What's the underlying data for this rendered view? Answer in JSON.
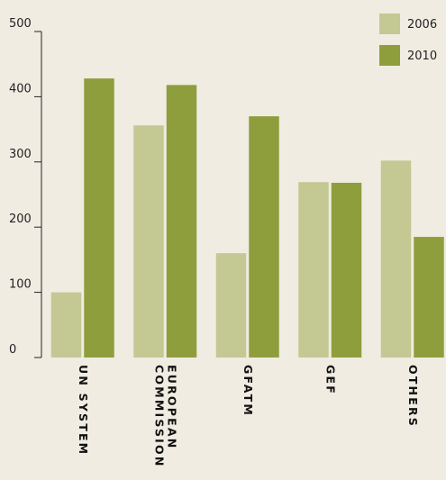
{
  "chart_data": {
    "type": "bar",
    "categories": [
      "UN SYSTEM",
      "EUROPEAN COMMISSION",
      "GFATM",
      "GEF",
      "OTHERS"
    ],
    "series": [
      {
        "name": "2006",
        "color": "#c4c893",
        "values": [
          100,
          356,
          160,
          269,
          302
        ]
      },
      {
        "name": "2010",
        "color": "#8f9e3c",
        "values": [
          428,
          418,
          370,
          268,
          185
        ]
      }
    ],
    "ylim": [
      0,
      500
    ],
    "yticks": [
      0,
      100,
      200,
      300,
      400,
      500
    ],
    "legend": "top-right"
  }
}
